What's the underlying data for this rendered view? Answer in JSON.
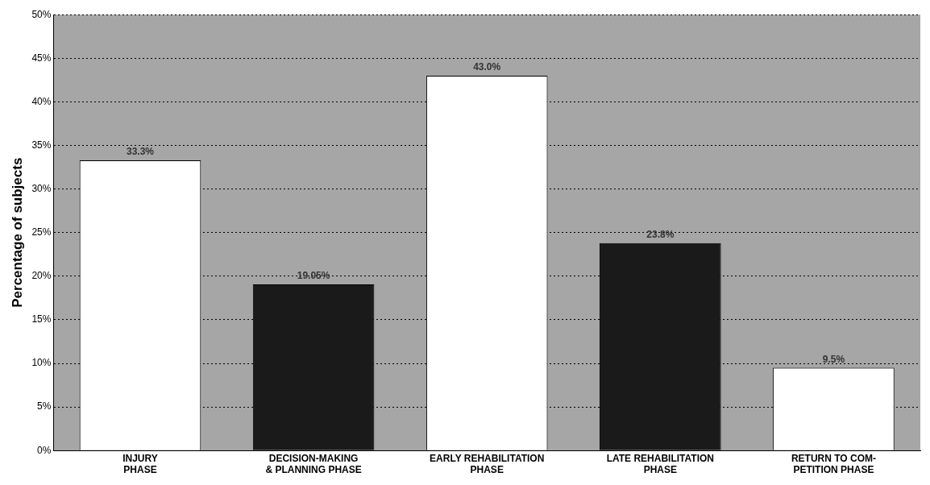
{
  "chart_data": {
    "type": "bar",
    "ylabel": "Percentage of subjects",
    "categories": [
      "INJURY\nPHASE",
      "DECISION-MAKING\n& PLANNING PHASE",
      "EARLY REHABILITATION\nPHASE",
      "LATE REHABILITATION\nPHASE",
      "RETURN TO COM-\nPETITION PHASE"
    ],
    "values": [
      33.3,
      19.05,
      43.0,
      23.8,
      9.5
    ],
    "colors": [
      "#ffffff",
      "#1a1a1a",
      "#ffffff",
      "#1a1a1a",
      "#ffffff"
    ],
    "value_labels": [
      "33.3%",
      "19.05%",
      "43.0%",
      "23.8%",
      "9.5%"
    ],
    "ylim": [
      0,
      50
    ],
    "yticks": [
      {
        "value": 0,
        "label": "0%"
      },
      {
        "value": 5,
        "label": "5%"
      },
      {
        "value": 10,
        "label": "10%"
      },
      {
        "value": 15,
        "label": "15%"
      },
      {
        "value": 20,
        "label": "20%"
      },
      {
        "value": 25,
        "label": "25%"
      },
      {
        "value": 30,
        "label": "30%"
      },
      {
        "value": 35,
        "label": "35%"
      },
      {
        "value": 40,
        "label": "40%"
      },
      {
        "value": 45,
        "label": "45%"
      },
      {
        "value": 50,
        "label": "50%"
      }
    ],
    "grid": "y",
    "legend": false
  }
}
